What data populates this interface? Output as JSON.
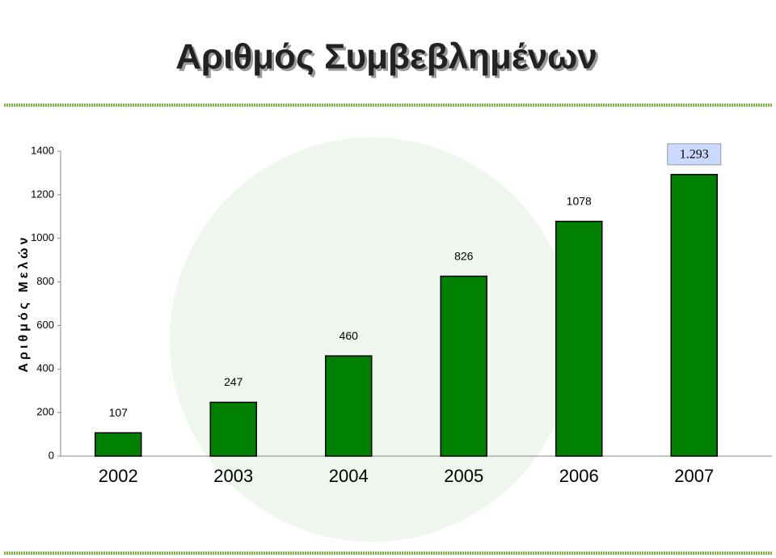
{
  "chart_data": {
    "type": "bar",
    "title": "Αριθμός Συμβεβλημένων",
    "y_label": "Αριθμός Μελών",
    "categories": [
      "2002",
      "2003",
      "2004",
      "2005",
      "2006",
      "2007"
    ],
    "values": [
      107,
      247,
      460,
      826,
      1078,
      1293
    ],
    "value_labels": [
      "107",
      "247",
      "460",
      "826",
      "1078",
      "1.293"
    ],
    "color": "#008000",
    "ylim": [
      0,
      1400
    ],
    "yticks": [
      0,
      200,
      400,
      600,
      800,
      1000,
      1200,
      1400
    ],
    "grid": false
  }
}
